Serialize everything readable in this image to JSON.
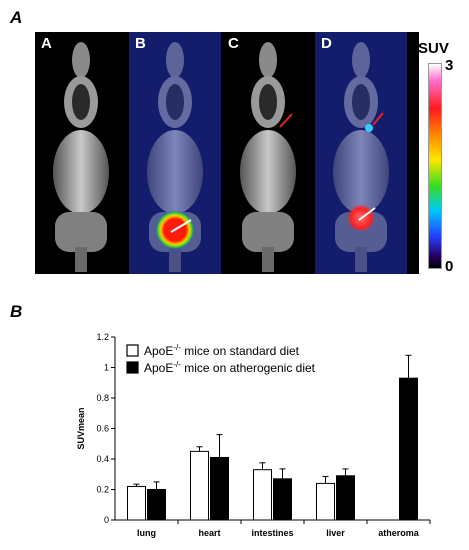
{
  "figure": {
    "panel_a_label": "A",
    "panel_b_label": "B",
    "scans": [
      {
        "letter": "A",
        "overlay": false
      },
      {
        "letter": "B",
        "overlay": true
      },
      {
        "letter": "C",
        "overlay": false
      },
      {
        "letter": "D",
        "overlay": true
      }
    ],
    "colorbar": {
      "title": "SUV",
      "max_label": "3",
      "min_label": "0"
    }
  },
  "chart_data": {
    "type": "bar",
    "ylabel": "SUVmean",
    "ylim": [
      0,
      1.2
    ],
    "yticks": [
      "0",
      "0.2",
      "0.4",
      "0.6",
      "0.8",
      "1",
      "1.2"
    ],
    "categories": [
      "lung",
      "heart",
      "intestines",
      "liver",
      "atheroma"
    ],
    "series": [
      {
        "name_prefix": "ApoE",
        "name_sup": "-/-",
        "name_suffix": " mice on standard diet",
        "color": "#ffffff",
        "values": [
          0.22,
          0.45,
          0.33,
          0.24,
          null
        ],
        "errors": [
          0.015,
          0.03,
          0.045,
          0.045,
          null
        ]
      },
      {
        "name_prefix": "ApoE",
        "name_sup": "-/-",
        "name_suffix": " mice on atherogenic diet",
        "color": "#000000",
        "values": [
          0.2,
          0.41,
          0.27,
          0.29,
          0.93
        ],
        "errors": [
          0.05,
          0.15,
          0.065,
          0.045,
          0.15
        ]
      }
    ]
  }
}
